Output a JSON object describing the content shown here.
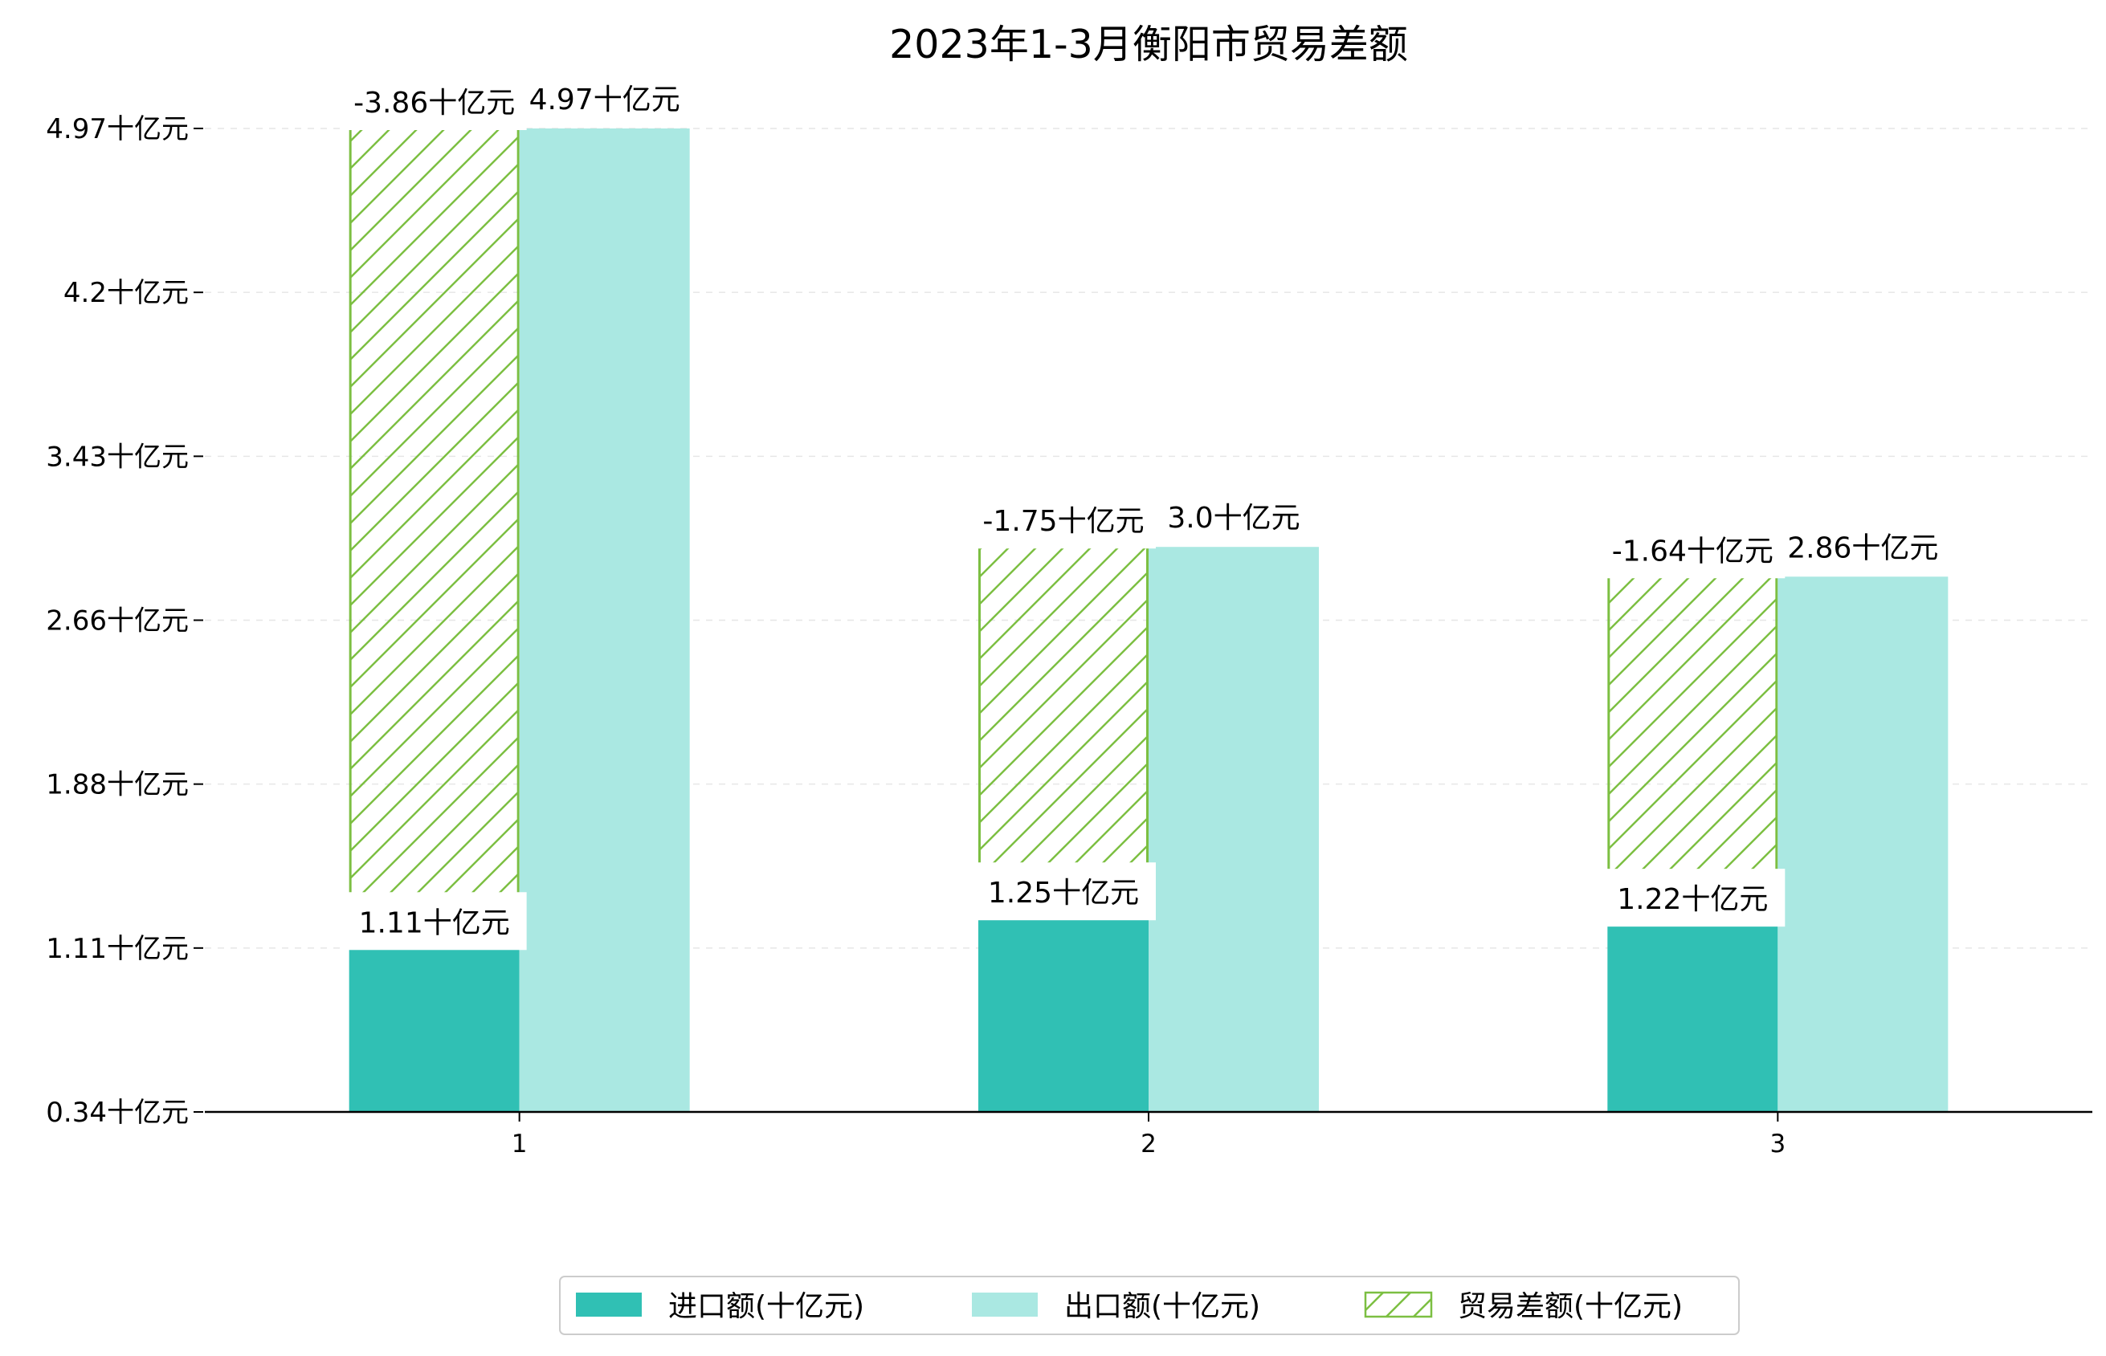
{
  "chart_data": {
    "type": "bar",
    "title": "2023年1-3月衡阳市贸易差额",
    "categories": [
      "1",
      "2",
      "3"
    ],
    "y_unit": "十亿元",
    "yticks": [
      "0.34十亿元",
      "1.11十亿元",
      "1.88十亿元",
      "2.66十亿元",
      "3.43十亿元",
      "4.2十亿元",
      "4.97十亿元"
    ],
    "ylim": [
      0.34,
      4.97
    ],
    "grid": "horizontal-dashed",
    "legend_position": "bottom-center",
    "series": [
      {
        "name": "进口额(十亿元)",
        "values": [
          1.11,
          1.25,
          1.22
        ],
        "labels": [
          "1.11十亿元",
          "1.25十亿元",
          "1.22十亿元"
        ],
        "color": "#30c0b4",
        "position": "left"
      },
      {
        "name": "出口额(十亿元)",
        "values": [
          4.97,
          3.0,
          2.86
        ],
        "labels": [
          "4.97十亿元",
          "3.0十亿元",
          "2.86十亿元"
        ],
        "color": "#aae8e2",
        "position": "right"
      },
      {
        "name": "贸易差额(十亿元)",
        "values": [
          -3.86,
          -1.75,
          -1.64
        ],
        "labels": [
          "-3.86十亿元",
          "-1.75十亿元",
          "-1.64十亿元"
        ],
        "color": "#7cbf42",
        "hatch": "diagonal",
        "position": "left-stacked-on-import"
      }
    ]
  }
}
